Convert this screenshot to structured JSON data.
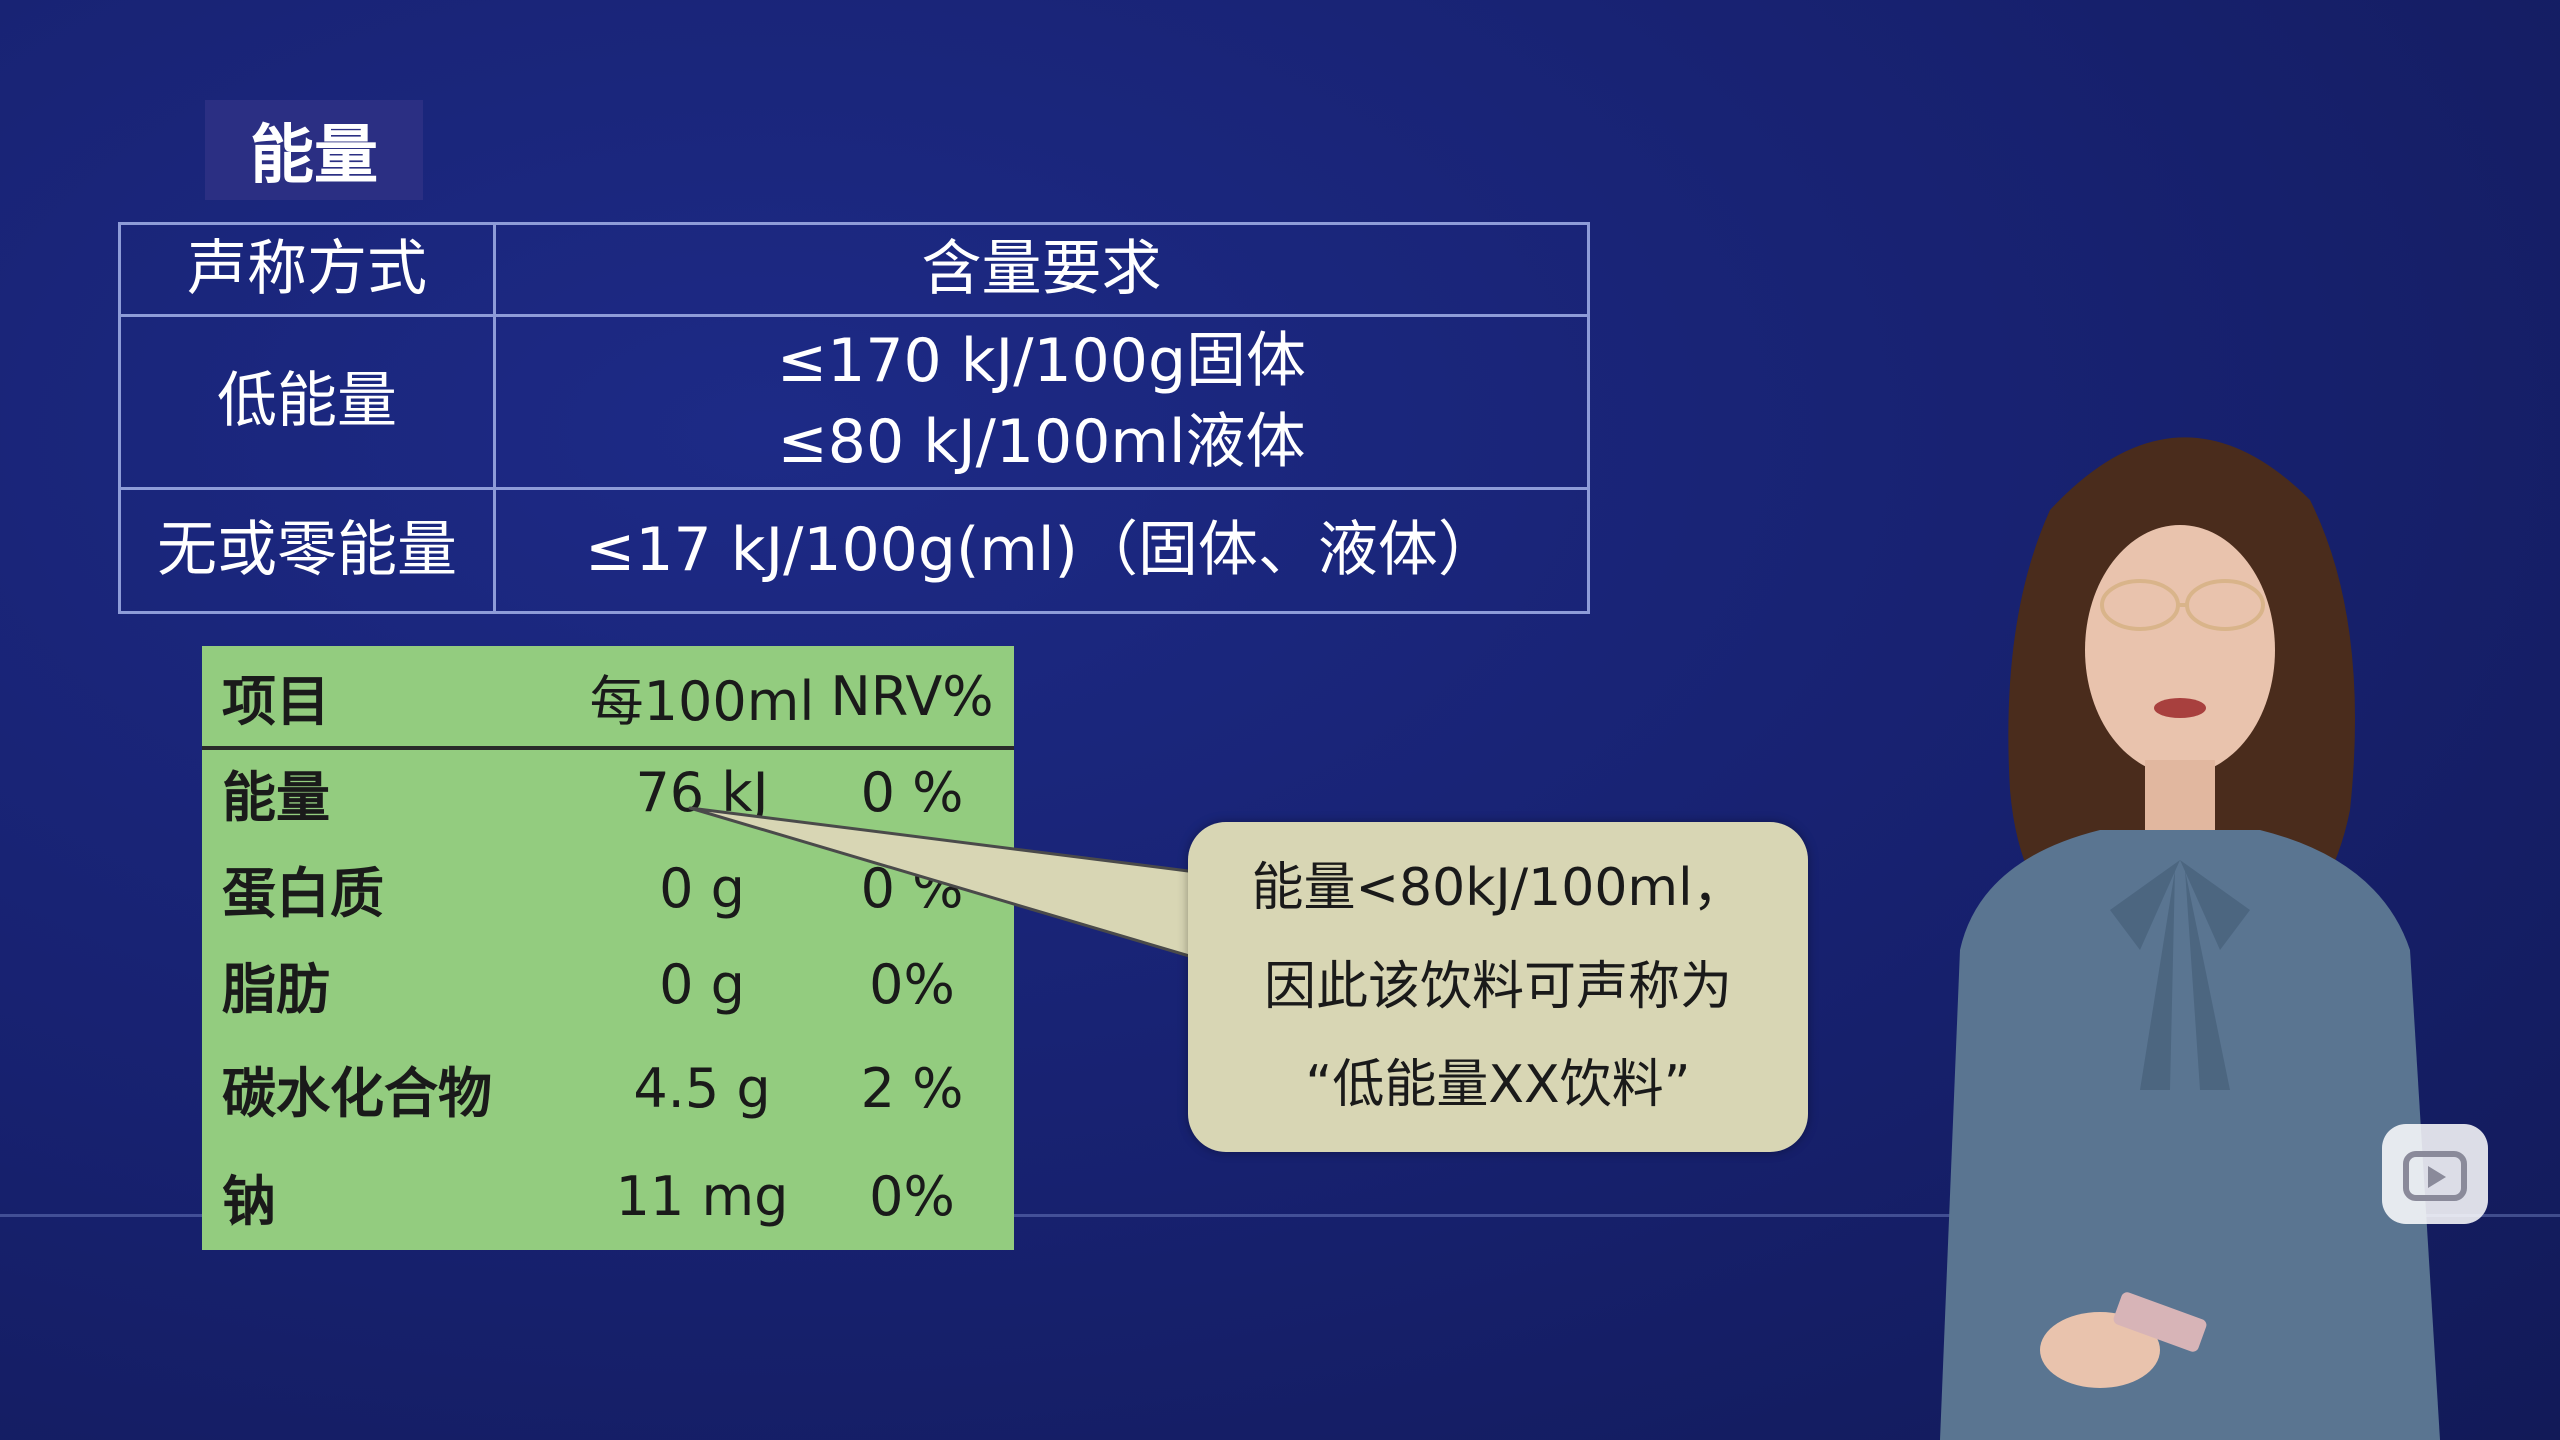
{
  "section_title": "能量",
  "requirement_table": {
    "headers": [
      "声称方式",
      "含量要求"
    ],
    "rows": [
      {
        "claim": "低能量",
        "requirement_lines": [
          "≤170 kJ/100g固体",
          "≤80 kJ/100ml液体"
        ]
      },
      {
        "claim": "无或零能量",
        "requirement_lines": [
          "≤17 kJ/100g(ml)（固体、液体）"
        ]
      }
    ]
  },
  "nutrition_label": {
    "headers": [
      "项目",
      "每100ml",
      "NRV%"
    ],
    "rows": [
      {
        "item": "能量",
        "amount": "76 kJ",
        "nrv": "0 %"
      },
      {
        "item": "蛋白质",
        "amount": "0 g",
        "nrv": "0 %"
      },
      {
        "item": "脂肪",
        "amount": "0 g",
        "nrv": "0%"
      },
      {
        "item": "碳水化合物",
        "amount": "4.5 g",
        "nrv": "2 %"
      },
      {
        "item": "钠",
        "amount": "11 mg",
        "nrv": "0%"
      }
    ],
    "background_color": "#93cc7f"
  },
  "callout": {
    "lines": [
      "能量<80kJ/100ml，",
      "因此该饮料可声称为",
      "“低能量XX饮料”"
    ]
  },
  "colors": {
    "background": "#17216f",
    "callout": "#d8d6b4"
  },
  "icons": {
    "video_play": "play-icon"
  }
}
